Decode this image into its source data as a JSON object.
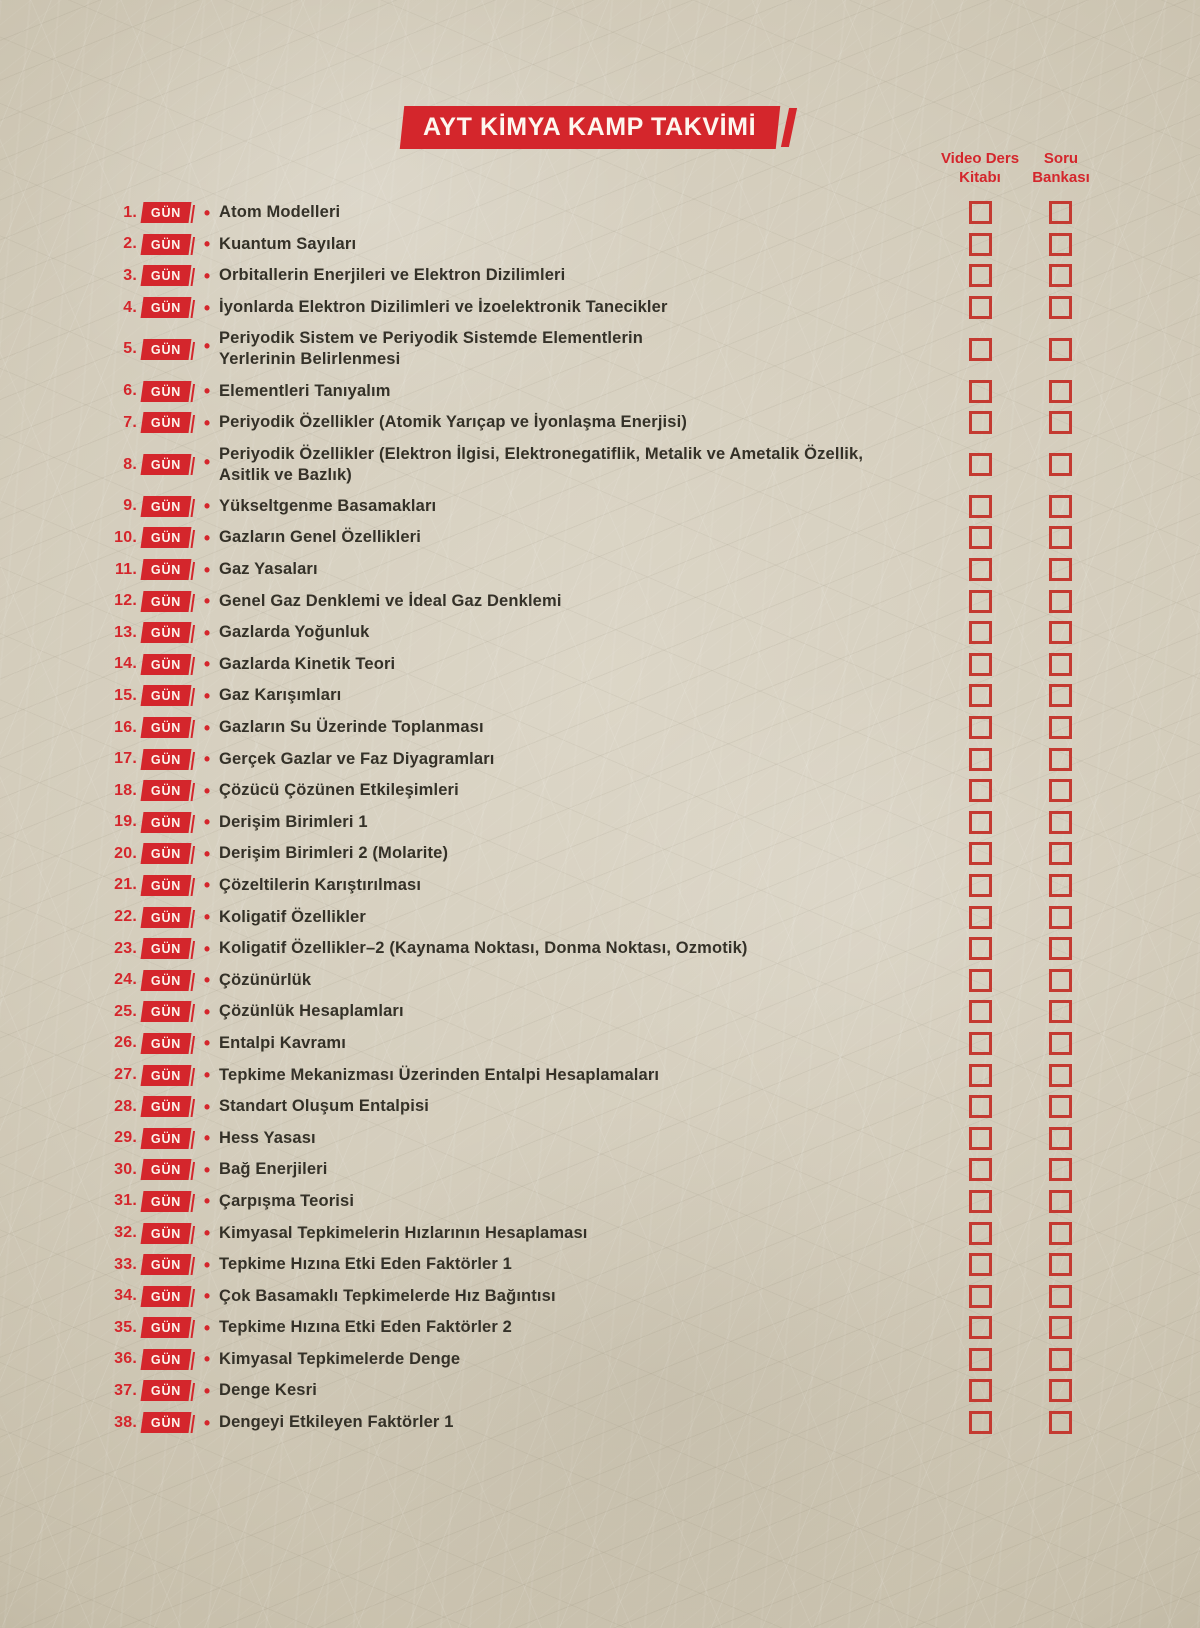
{
  "title": "AYT KİMYA KAMP TAKVİMİ",
  "badge_label": "GÜN",
  "bullet_glyph": "•",
  "columns": [
    {
      "label": "Video Ders Kitabı"
    },
    {
      "label": "Soru Bankası"
    }
  ],
  "colors": {
    "accent_red": "#d4262c",
    "checkbox_red": "#c43a31",
    "topic_text": "#343128",
    "paper": "#d4cdbc"
  },
  "days": [
    {
      "num": "1.",
      "topic": "Atom Modelleri"
    },
    {
      "num": "2.",
      "topic": "Kuantum Sayıları"
    },
    {
      "num": "3.",
      "topic": "Orbitallerin Enerjileri ve Elektron Dizilimleri"
    },
    {
      "num": "4.",
      "topic": "İyonlarda Elektron Dizilimleri ve İzoelektronik Tanecikler"
    },
    {
      "num": "5.",
      "topic": "Periyodik Sistem ve Periyodik Sistemde Elementlerin\nYerlerinin Belirlenmesi"
    },
    {
      "num": "6.",
      "topic": "Elementleri Tanıyalım"
    },
    {
      "num": "7.",
      "topic": "Periyodik Özellikler (Atomik Yarıçap ve İyonlaşma Enerjisi)"
    },
    {
      "num": "8.",
      "topic": "Periyodik Özellikler (Elektron İlgisi, Elektronegatiflik, Metalik ve Ametalik Özellik,\nAsitlik ve Bazlık)"
    },
    {
      "num": "9.",
      "topic": "Yükseltgenme Basamakları"
    },
    {
      "num": "10.",
      "topic": "Gazların Genel Özellikleri"
    },
    {
      "num": "11.",
      "topic": "Gaz Yasaları"
    },
    {
      "num": "12.",
      "topic": "Genel Gaz Denklemi ve İdeal Gaz Denklemi"
    },
    {
      "num": "13.",
      "topic": "Gazlarda Yoğunluk"
    },
    {
      "num": "14.",
      "topic": "Gazlarda Kinetik Teori"
    },
    {
      "num": "15.",
      "topic": "Gaz Karışımları"
    },
    {
      "num": "16.",
      "topic": "Gazların Su Üzerinde Toplanması"
    },
    {
      "num": "17.",
      "topic": "Gerçek Gazlar ve Faz Diyagramları"
    },
    {
      "num": "18.",
      "topic": "Çözücü Çözünen Etkileşimleri"
    },
    {
      "num": "19.",
      "topic": "Derişim Birimleri 1"
    },
    {
      "num": "20.",
      "topic": "Derişim Birimleri 2 (Molarite)"
    },
    {
      "num": "21.",
      "topic": "Çözeltilerin Karıştırılması"
    },
    {
      "num": "22.",
      "topic": "Koligatif Özellikler"
    },
    {
      "num": "23.",
      "topic": "Koligatif Özellikler–2 (Kaynama Noktası, Donma Noktası, Ozmotik)"
    },
    {
      "num": "24.",
      "topic": "Çözünürlük"
    },
    {
      "num": "25.",
      "topic": "Çözünlük Hesaplamları"
    },
    {
      "num": "26.",
      "topic": "Entalpi Kavramı"
    },
    {
      "num": "27.",
      "topic": "Tepkime Mekanizması Üzerinden Entalpi Hesaplamaları"
    },
    {
      "num": "28.",
      "topic": "Standart Oluşum Entalpisi"
    },
    {
      "num": "29.",
      "topic": "Hess Yasası"
    },
    {
      "num": "30.",
      "topic": "Bağ Enerjileri"
    },
    {
      "num": "31.",
      "topic": "Çarpışma Teorisi"
    },
    {
      "num": "32.",
      "topic": "Kimyasal Tepkimelerin Hızlarının Hesaplaması"
    },
    {
      "num": "33.",
      "topic": "Tepkime Hızına Etki Eden Faktörler 1"
    },
    {
      "num": "34.",
      "topic": "Çok Basamaklı Tepkimelerde Hız Bağıntısı"
    },
    {
      "num": "35.",
      "topic": "Tepkime Hızına Etki Eden Faktörler 2"
    },
    {
      "num": "36.",
      "topic": "Kimyasal Tepkimelerde Denge"
    },
    {
      "num": "37.",
      "topic": "Denge Kesri"
    },
    {
      "num": "38.",
      "topic": "Dengeyi Etkileyen Faktörler 1"
    }
  ]
}
